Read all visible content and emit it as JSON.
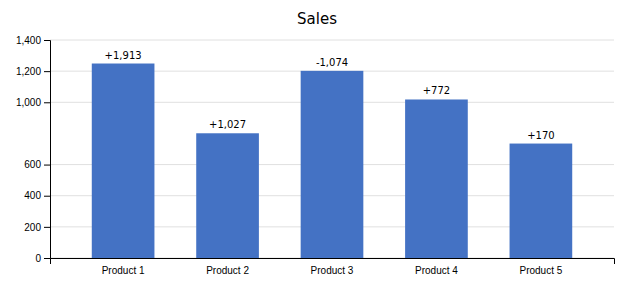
{
  "chart_data": {
    "type": "bar",
    "title": "Sales",
    "categories": [
      "Product 1",
      "Product 2",
      "Product 3",
      "Product 4",
      "Product 5"
    ],
    "values": [
      1249,
      801,
      1202,
      1018,
      735
    ],
    "annotations": [
      "+1,913",
      "+1,027",
      "-1,074",
      "+772",
      "+170"
    ],
    "color": "#4472C4",
    "ylim": [
      0,
      1400
    ],
    "yticks": [
      0,
      200,
      400,
      600,
      {
        "value": 1000,
        "label": "1,000"
      },
      {
        "value": 1200,
        "label": "1,200"
      },
      {
        "value": 1400,
        "label": "1,400"
      }
    ],
    "grid": true
  }
}
